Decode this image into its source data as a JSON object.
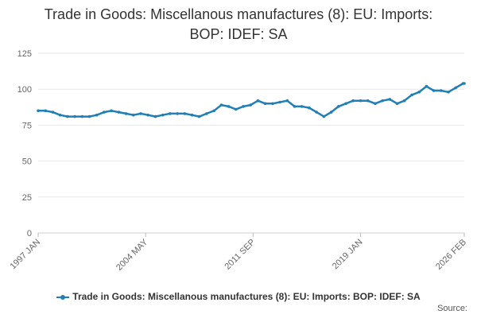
{
  "title_line1": "Trade in Goods: Miscellanous manufactures (8): EU: Imports:",
  "title_line2": "BOP: IDEF: SA",
  "source_label": "Source:",
  "chart_data": {
    "type": "line",
    "title": "Trade in Goods: Miscellanous manufactures (8): EU: Imports: BOP: IDEF: SA",
    "xlabel": "",
    "ylabel": "",
    "ylim": [
      0,
      125
    ],
    "yticks": [
      0,
      25,
      50,
      75,
      100,
      125
    ],
    "x_range": [
      "1997 JAN",
      "2026 FEB"
    ],
    "xticks": [
      "1997 JAN",
      "2004 MAY",
      "2011 SEP",
      "2019 JAN",
      "2026 FEB"
    ],
    "grid": "horizontal",
    "legend_position": "bottom",
    "color": "#1f7fb6",
    "series": [
      {
        "name": "Trade in Goods: Miscellanous manufactures (8): EU: Imports: BOP: IDEF: SA",
        "points": [
          [
            "1997 JAN",
            85
          ],
          [
            "1997 JUL",
            85
          ],
          [
            "1998 JAN",
            84
          ],
          [
            "1998 JUL",
            82
          ],
          [
            "1999 JAN",
            81
          ],
          [
            "1999 JUL",
            81
          ],
          [
            "2000 JAN",
            81
          ],
          [
            "2000 JUL",
            81
          ],
          [
            "2001 JAN",
            82
          ],
          [
            "2001 JUL",
            84
          ],
          [
            "2002 JAN",
            85
          ],
          [
            "2002 JUL",
            84
          ],
          [
            "2003 JAN",
            83
          ],
          [
            "2003 JUL",
            82
          ],
          [
            "2004 JAN",
            83
          ],
          [
            "2004 JUL",
            82
          ],
          [
            "2005 JAN",
            81
          ],
          [
            "2005 JUL",
            82
          ],
          [
            "2006 JAN",
            83
          ],
          [
            "2006 JUL",
            83
          ],
          [
            "2007 JAN",
            83
          ],
          [
            "2007 JUL",
            82
          ],
          [
            "2008 JAN",
            81
          ],
          [
            "2008 JUL",
            83
          ],
          [
            "2009 JAN",
            85
          ],
          [
            "2009 JUL",
            89
          ],
          [
            "2010 JAN",
            88
          ],
          [
            "2010 JUL",
            86
          ],
          [
            "2011 JAN",
            88
          ],
          [
            "2011 JUL",
            89
          ],
          [
            "2012 JAN",
            92
          ],
          [
            "2012 JUL",
            90
          ],
          [
            "2013 JAN",
            90
          ],
          [
            "2013 JUL",
            91
          ],
          [
            "2014 JAN",
            92
          ],
          [
            "2014 JUL",
            88
          ],
          [
            "2015 JAN",
            88
          ],
          [
            "2015 JUL",
            87
          ],
          [
            "2016 JAN",
            84
          ],
          [
            "2016 JUL",
            81
          ],
          [
            "2017 JAN",
            84
          ],
          [
            "2017 JUL",
            88
          ],
          [
            "2018 JAN",
            90
          ],
          [
            "2018 JUL",
            92
          ],
          [
            "2019 JAN",
            92
          ],
          [
            "2019 JUL",
            92
          ],
          [
            "2020 JAN",
            90
          ],
          [
            "2020 JUL",
            92
          ],
          [
            "2021 JAN",
            93
          ],
          [
            "2021 JUL",
            90
          ],
          [
            "2022 JAN",
            92
          ],
          [
            "2022 JUL",
            96
          ],
          [
            "2023 JAN",
            98
          ],
          [
            "2023 JUL",
            102
          ],
          [
            "2024 JAN",
            99
          ],
          [
            "2024 JUL",
            99
          ],
          [
            "2025 JAN",
            98
          ],
          [
            "2025 JUL",
            101
          ],
          [
            "2026 JAN",
            104
          ],
          [
            "2026 FEB",
            104
          ]
        ]
      }
    ]
  }
}
